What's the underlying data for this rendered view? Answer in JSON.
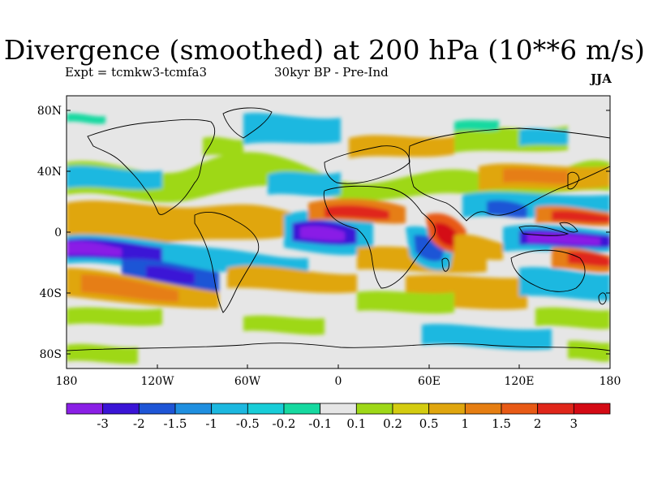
{
  "title": "Divergence (smoothed) at 200 hPa (10**6 m/s)",
  "subtitle_left": "Expt = tcmkw3-tcmfa3",
  "subtitle_center": "30kyr BP - Pre-Ind",
  "season": "JJA",
  "lat_ticks": [
    "80N",
    "40N",
    "0",
    "40S",
    "80S"
  ],
  "lon_ticks": [
    "180",
    "120W",
    "60W",
    "0",
    "60E",
    "120E",
    "180"
  ],
  "colorbar": {
    "labels": [
      "-3",
      "-2",
      "-1.5",
      "-1",
      "-0.5",
      "-0.2",
      "-0.1",
      "0.1",
      "0.2",
      "0.5",
      "1",
      "1.5",
      "2",
      "3"
    ],
    "colors": [
      "#8a1fe6",
      "#3a14d6",
      "#1e55d6",
      "#1f8fe0",
      "#1cb8e0",
      "#18cdd8",
      "#16d9a0",
      "#e6e6e6",
      "#9ed818",
      "#d4cc10",
      "#e0a60e",
      "#e67e12",
      "#e85a16",
      "#e0261a",
      "#d40a14"
    ]
  }
}
